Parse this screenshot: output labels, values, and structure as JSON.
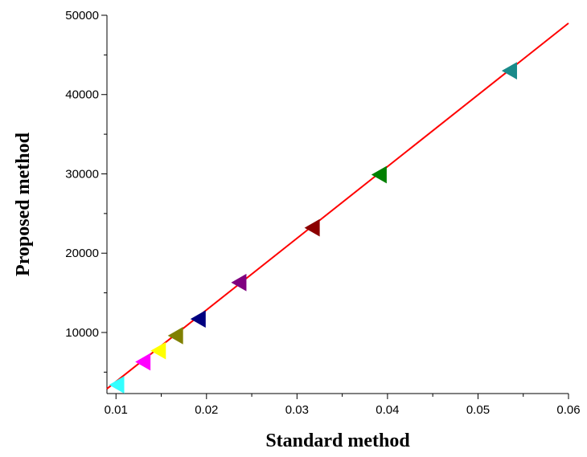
{
  "chart_data": {
    "type": "scatter",
    "title": "",
    "xlabel": "Standard method",
    "ylabel": "Proposed method",
    "xlim": [
      0.009,
      0.06
    ],
    "ylim": [
      2300,
      50000
    ],
    "x_ticks": [
      0.01,
      0.02,
      0.03,
      0.04,
      0.05,
      0.06
    ],
    "x_tick_labels": [
      "0.01",
      "0.02",
      "0.03",
      "0.04",
      "0.05",
      "0.06"
    ],
    "y_ticks": [
      10000,
      20000,
      30000,
      40000,
      50000
    ],
    "y_tick_labels": [
      "10000",
      "20000",
      "30000",
      "40000",
      "50000"
    ],
    "grid": false,
    "marker": "left-triangle",
    "points": [
      {
        "x": 0.0102,
        "y": 3400,
        "color": "#33ffff"
      },
      {
        "x": 0.0131,
        "y": 6300,
        "color": "#ff00ff"
      },
      {
        "x": 0.0148,
        "y": 7700,
        "color": "#ffff00"
      },
      {
        "x": 0.0167,
        "y": 9600,
        "color": "#808000"
      },
      {
        "x": 0.0192,
        "y": 11700,
        "color": "#000080"
      },
      {
        "x": 0.0237,
        "y": 16300,
        "color": "#800080"
      },
      {
        "x": 0.0318,
        "y": 23200,
        "color": "#8b0000"
      },
      {
        "x": 0.0392,
        "y": 29900,
        "color": "#008000"
      },
      {
        "x": 0.0536,
        "y": 43000,
        "color": "#1a8a8a"
      }
    ],
    "fit_line": {
      "x": [
        0.009,
        0.06
      ],
      "y": [
        2900,
        49000
      ],
      "color": "#ff0000"
    }
  }
}
